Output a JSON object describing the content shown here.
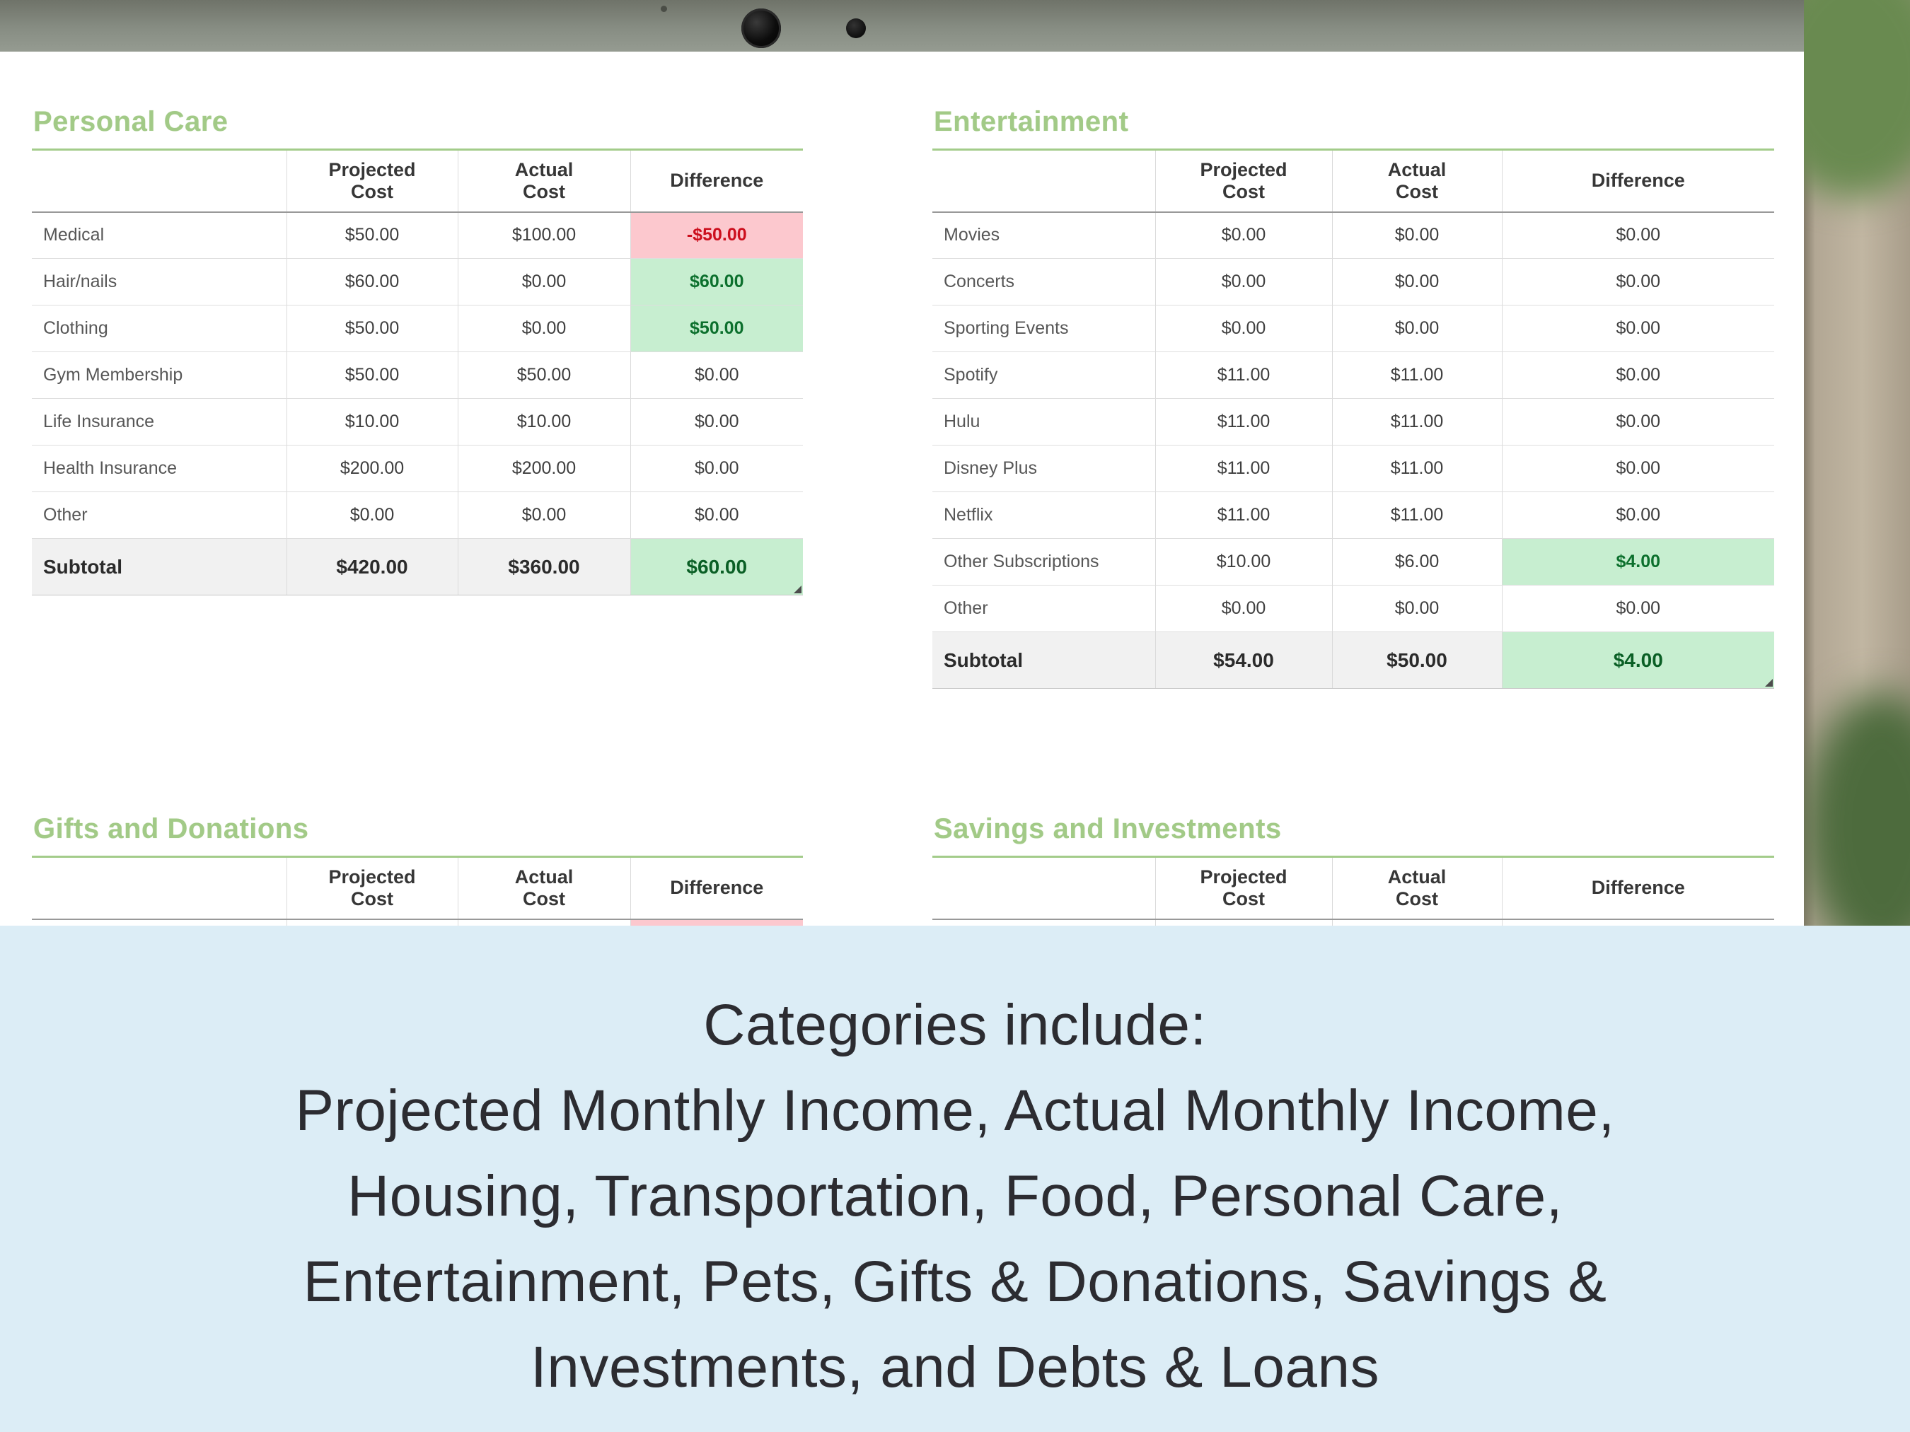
{
  "colors": {
    "accent_green_heading": "#a2ca87",
    "table_top_border": "#a3cc8a",
    "positive_cell_bg": "#c7eed0",
    "positive_cell_text": "#0c702d",
    "negative_cell_bg": "#fcc8ce",
    "negative_cell_text": "#cc0f1d",
    "subtotal_row_bg": "#f1f1f1",
    "caption_panel_bg": "#dcedf6",
    "caption_text": "#2c2c31"
  },
  "icons": {
    "webcam": "webcam-circle",
    "microphone": "microphone-dot",
    "sensor": "sensor-dot"
  },
  "columns": [
    "Projected\nCost",
    "Actual\nCost",
    "Difference"
  ],
  "tables": [
    {
      "id": "personal-care",
      "title": "Personal Care",
      "rows": [
        {
          "label": "Medical",
          "projected": "$50.00",
          "actual": "$100.00",
          "difference": "-$50.00",
          "diff": "negative"
        },
        {
          "label": "Hair/nails",
          "projected": "$60.00",
          "actual": "$0.00",
          "difference": "$60.00",
          "diff": "positive"
        },
        {
          "label": "Clothing",
          "projected": "$50.00",
          "actual": "$0.00",
          "difference": "$50.00",
          "diff": "positive"
        },
        {
          "label": "Gym Membership",
          "projected": "$50.00",
          "actual": "$50.00",
          "difference": "$0.00",
          "diff": "neutral"
        },
        {
          "label": "Life Insurance",
          "projected": "$10.00",
          "actual": "$10.00",
          "difference": "$0.00",
          "diff": "neutral"
        },
        {
          "label": "Health Insurance",
          "projected": "$200.00",
          "actual": "$200.00",
          "difference": "$0.00",
          "diff": "neutral"
        },
        {
          "label": "Other",
          "projected": "$0.00",
          "actual": "$0.00",
          "difference": "$0.00",
          "diff": "neutral"
        }
      ],
      "subtotal": {
        "label": "Subtotal",
        "projected": "$420.00",
        "actual": "$360.00",
        "difference": "$60.00",
        "diff": "positive"
      }
    },
    {
      "id": "entertainment",
      "title": "Entertainment",
      "rows": [
        {
          "label": "Movies",
          "projected": "$0.00",
          "actual": "$0.00",
          "difference": "$0.00",
          "diff": "neutral"
        },
        {
          "label": "Concerts",
          "projected": "$0.00",
          "actual": "$0.00",
          "difference": "$0.00",
          "diff": "neutral"
        },
        {
          "label": "Sporting Events",
          "projected": "$0.00",
          "actual": "$0.00",
          "difference": "$0.00",
          "diff": "neutral"
        },
        {
          "label": "Spotify",
          "projected": "$11.00",
          "actual": "$11.00",
          "difference": "$0.00",
          "diff": "neutral"
        },
        {
          "label": "Hulu",
          "projected": "$11.00",
          "actual": "$11.00",
          "difference": "$0.00",
          "diff": "neutral"
        },
        {
          "label": "Disney Plus",
          "projected": "$11.00",
          "actual": "$11.00",
          "difference": "$0.00",
          "diff": "neutral"
        },
        {
          "label": "Netflix",
          "projected": "$11.00",
          "actual": "$11.00",
          "difference": "$0.00",
          "diff": "neutral"
        },
        {
          "label": "Other Subscriptions",
          "projected": "$10.00",
          "actual": "$6.00",
          "difference": "$4.00",
          "diff": "positive"
        },
        {
          "label": "Other",
          "projected": "$0.00",
          "actual": "$0.00",
          "difference": "$0.00",
          "diff": "neutral"
        }
      ],
      "subtotal": {
        "label": "Subtotal",
        "projected": "$54.00",
        "actual": "$50.00",
        "difference": "$4.00",
        "diff": "positive"
      }
    },
    {
      "id": "gifts-donations",
      "title": "Gifts and Donations",
      "rows": [
        {
          "label": "",
          "projected": "",
          "actual": "",
          "difference": "",
          "diff": "negative"
        }
      ],
      "subtotal": null
    },
    {
      "id": "savings-investments",
      "title": "Savings and Investments",
      "rows": [
        {
          "label": "",
          "projected": "",
          "actual": "",
          "difference": "",
          "diff": "neutral"
        }
      ],
      "subtotal": null
    }
  ],
  "caption": {
    "lines": [
      "Categories include:",
      "Projected Monthly Income, Actual Monthly Income,",
      "Housing, Transportation, Food, Personal Care,",
      "Entertainment, Pets, Gifts & Donations, Savings &",
      "Investments, and Debts & Loans"
    ]
  }
}
